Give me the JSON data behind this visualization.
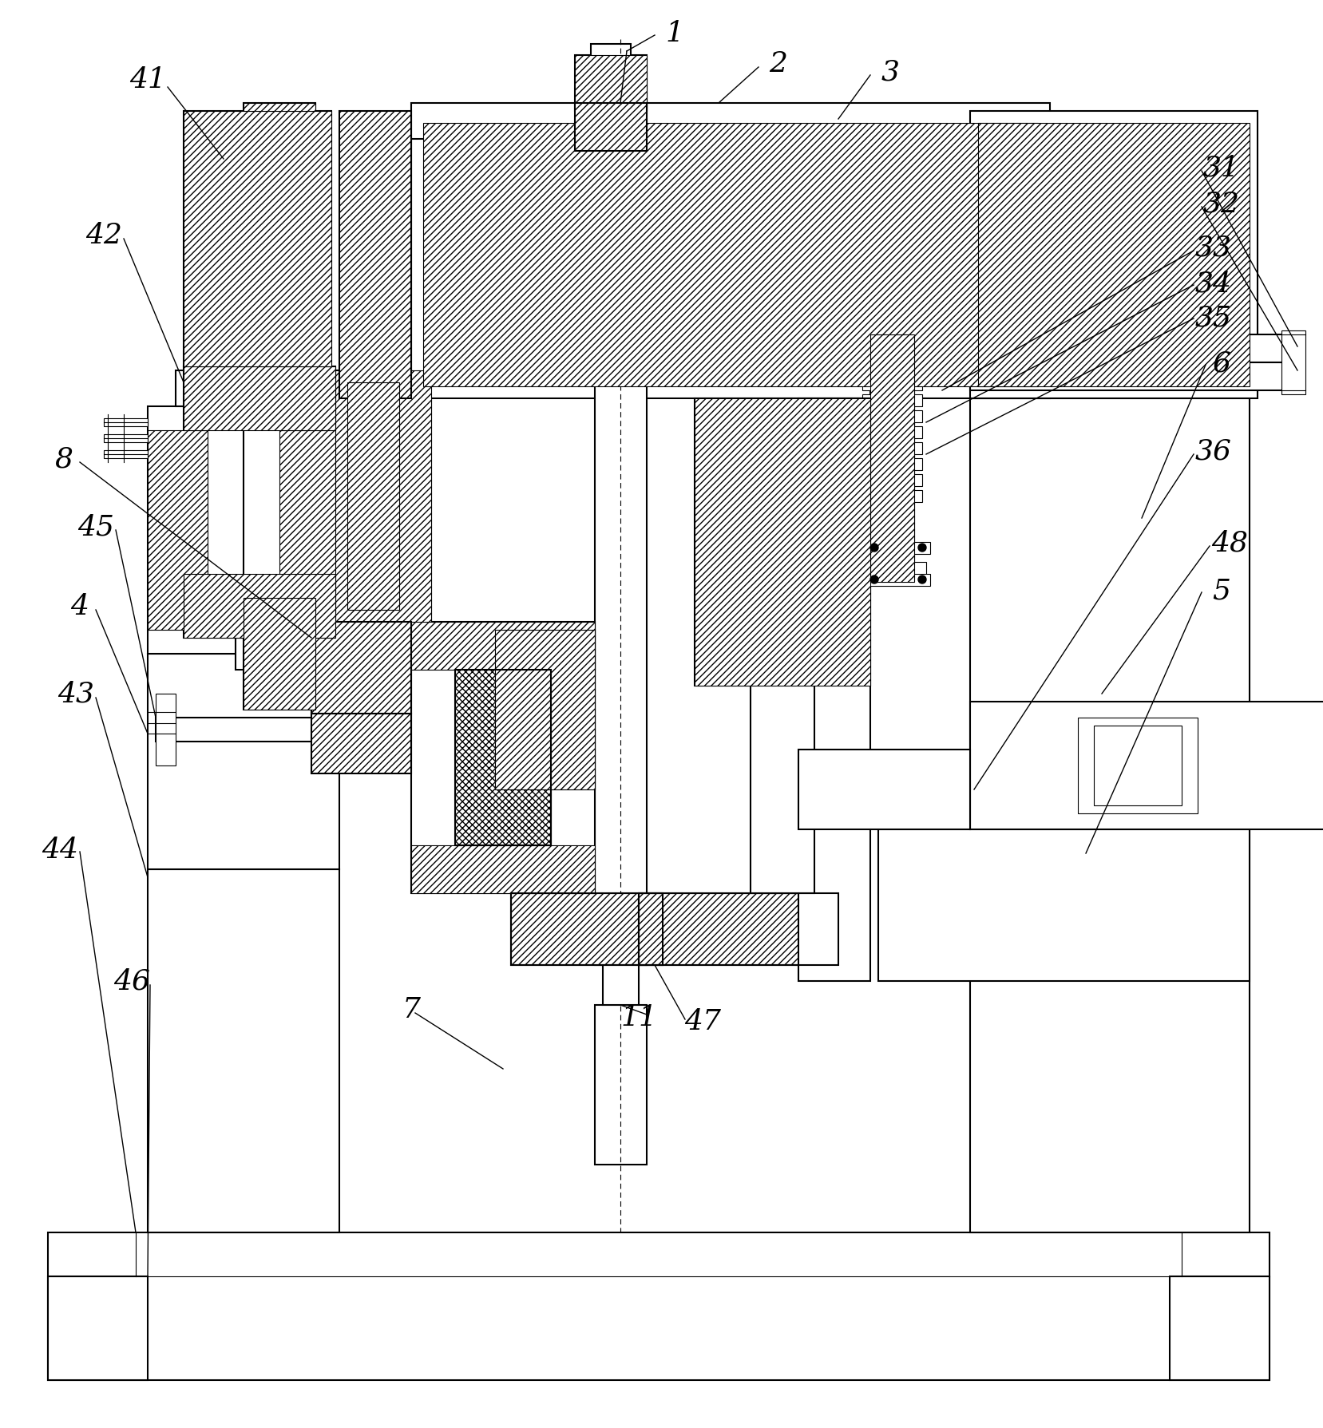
{
  "bg_color": "#ffffff",
  "lw_main": 1.5,
  "lw_thin": 0.8,
  "lw_thick": 2.0,
  "label_fs": 26,
  "figsize": [
    16.58,
    17.9
  ],
  "dpi": 100
}
